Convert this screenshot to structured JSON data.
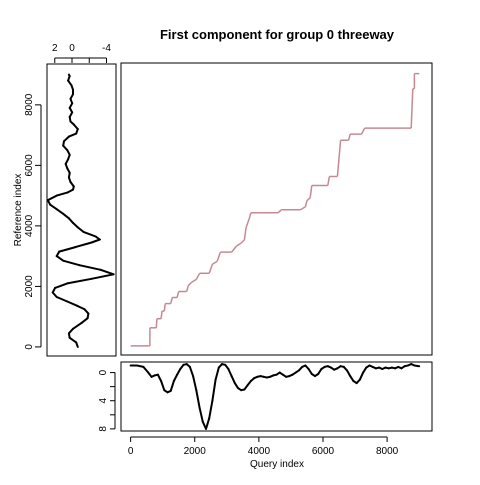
{
  "chart_data": {
    "type": "line",
    "title": "First component for group 0  threeway",
    "main": {
      "xlim": [
        -300,
        9400
      ],
      "ylim": [
        -300,
        9350
      ],
      "step_color": "#c48a94",
      "alignment": [
        [
          0,
          0
        ],
        [
          600,
          0
        ],
        [
          600,
          600
        ],
        [
          800,
          600
        ],
        [
          820,
          900
        ],
        [
          950,
          900
        ],
        [
          980,
          1150
        ],
        [
          1050,
          1150
        ],
        [
          1080,
          1400
        ],
        [
          1250,
          1400
        ],
        [
          1300,
          1600
        ],
        [
          1450,
          1600
        ],
        [
          1500,
          1800
        ],
        [
          1750,
          1800
        ],
        [
          1800,
          2000
        ],
        [
          1900,
          2100
        ],
        [
          2050,
          2200
        ],
        [
          2150,
          2400
        ],
        [
          2450,
          2400
        ],
        [
          2550,
          2700
        ],
        [
          2700,
          2800
        ],
        [
          2800,
          3100
        ],
        [
          3150,
          3100
        ],
        [
          3300,
          3300
        ],
        [
          3450,
          3400
        ],
        [
          3550,
          3500
        ],
        [
          3600,
          3900
        ],
        [
          3700,
          4200
        ],
        [
          3750,
          4400
        ],
        [
          4600,
          4400
        ],
        [
          4700,
          4500
        ],
        [
          5300,
          4500
        ],
        [
          5450,
          4600
        ],
        [
          5500,
          4800
        ],
        [
          5600,
          4900
        ],
        [
          5650,
          5300
        ],
        [
          6150,
          5300
        ],
        [
          6200,
          5600
        ],
        [
          6450,
          5600
        ],
        [
          6550,
          6800
        ],
        [
          6800,
          6800
        ],
        [
          6850,
          7000
        ],
        [
          7200,
          7000
        ],
        [
          7300,
          7200
        ],
        [
          8750,
          7200
        ],
        [
          8800,
          8500
        ],
        [
          8850,
          8500
        ],
        [
          8850,
          9000
        ],
        [
          9000,
          9000
        ]
      ]
    },
    "top_panel": {
      "x_ticks": [
        2,
        0,
        -4
      ],
      "xlim": [
        2.9,
        -5.1
      ]
    },
    "left_panel": {
      "ylabel": "Reference index",
      "y_ticks": [
        0,
        2000,
        4000,
        6000,
        8000
      ],
      "xlim": [
        3.0,
        -5.5
      ],
      "ylim": [
        -300,
        9350
      ],
      "curve": [
        [
          0,
          -0.8
        ],
        [
          150,
          -0.6
        ],
        [
          300,
          0.2
        ],
        [
          450,
          0.3
        ],
        [
          600,
          -0.2
        ],
        [
          800,
          -1.3
        ],
        [
          950,
          -2.0
        ],
        [
          1100,
          -2.1
        ],
        [
          1250,
          -1.6
        ],
        [
          1350,
          -0.8
        ],
        [
          1500,
          0.5
        ],
        [
          1650,
          1.8
        ],
        [
          1800,
          2.3
        ],
        [
          1950,
          2.0
        ],
        [
          2100,
          0.5
        ],
        [
          2250,
          -2.5
        ],
        [
          2400,
          -5.2
        ],
        [
          2550,
          -3.6
        ],
        [
          2700,
          -1.0
        ],
        [
          2850,
          1.0
        ],
        [
          3000,
          1.8
        ],
        [
          3150,
          1.5
        ],
        [
          3300,
          -0.5
        ],
        [
          3450,
          -2.5
        ],
        [
          3550,
          -3.5
        ],
        [
          3650,
          -3.0
        ],
        [
          3800,
          -1.5
        ],
        [
          3950,
          -0.8
        ],
        [
          4100,
          -0.2
        ],
        [
          4250,
          0.3
        ],
        [
          4400,
          1.0
        ],
        [
          4550,
          1.8
        ],
        [
          4700,
          2.6
        ],
        [
          4850,
          2.9
        ],
        [
          5000,
          1.8
        ],
        [
          5100,
          0.5
        ],
        [
          5200,
          -0.2
        ],
        [
          5300,
          -0.3
        ],
        [
          5450,
          0.1
        ],
        [
          5600,
          0.3
        ],
        [
          5750,
          0.2
        ],
        [
          5900,
          0.5
        ],
        [
          6050,
          0.7
        ],
        [
          6200,
          0.4
        ],
        [
          6350,
          0.2
        ],
        [
          6500,
          0.5
        ],
        [
          6650,
          1.0
        ],
        [
          6800,
          0.9
        ],
        [
          6950,
          0.3
        ],
        [
          7050,
          -0.6
        ],
        [
          7200,
          -0.8
        ],
        [
          7350,
          -0.3
        ],
        [
          7450,
          0.1
        ],
        [
          7600,
          0.2
        ],
        [
          7750,
          -0.1
        ],
        [
          7900,
          0.2
        ],
        [
          8050,
          -0.1
        ],
        [
          8200,
          0.1
        ],
        [
          8350,
          -0.2
        ],
        [
          8500,
          -0.2
        ],
        [
          8650,
          0.0
        ],
        [
          8800,
          0.4
        ],
        [
          8950,
          0.2
        ],
        [
          9000,
          0.3
        ]
      ]
    },
    "bottom_panel": {
      "xlabel": "Query index",
      "x_ticks": [
        0,
        2000,
        4000,
        6000,
        8000
      ],
      "y_ticks": [
        0,
        -4,
        -8
      ],
      "y_tick_labels": [
        "0",
        "4",
        "8"
      ],
      "xlim": [
        -300,
        9400
      ],
      "ylim": [
        -8.3,
        1.5
      ],
      "curve": [
        [
          0,
          1.0
        ],
        [
          200,
          1.0
        ],
        [
          400,
          0.8
        ],
        [
          550,
          0.0
        ],
        [
          650,
          -0.6
        ],
        [
          750,
          -0.4
        ],
        [
          850,
          -0.3
        ],
        [
          950,
          -1.2
        ],
        [
          1050,
          -2.5
        ],
        [
          1150,
          -2.8
        ],
        [
          1250,
          -2.6
        ],
        [
          1350,
          -1.2
        ],
        [
          1450,
          -0.3
        ],
        [
          1550,
          0.5
        ],
        [
          1650,
          1.1
        ],
        [
          1750,
          1.2
        ],
        [
          1850,
          0.8
        ],
        [
          1950,
          -0.5
        ],
        [
          2050,
          -2.5
        ],
        [
          2150,
          -5.0
        ],
        [
          2250,
          -7.0
        ],
        [
          2350,
          -8.0
        ],
        [
          2450,
          -6.5
        ],
        [
          2550,
          -4.0
        ],
        [
          2650,
          -1.0
        ],
        [
          2750,
          0.7
        ],
        [
          2850,
          1.2
        ],
        [
          2950,
          1.1
        ],
        [
          3050,
          0.5
        ],
        [
          3150,
          -0.5
        ],
        [
          3250,
          -1.5
        ],
        [
          3350,
          -2.2
        ],
        [
          3450,
          -2.5
        ],
        [
          3550,
          -2.4
        ],
        [
          3650,
          -1.8
        ],
        [
          3750,
          -1.2
        ],
        [
          3850,
          -0.8
        ],
        [
          3950,
          -0.6
        ],
        [
          4050,
          -0.5
        ],
        [
          4150,
          -0.6
        ],
        [
          4250,
          -0.7
        ],
        [
          4350,
          -0.6
        ],
        [
          4450,
          -0.4
        ],
        [
          4550,
          -0.3
        ],
        [
          4650,
          0.0
        ],
        [
          4750,
          -0.3
        ],
        [
          4850,
          -0.6
        ],
        [
          4950,
          -0.5
        ],
        [
          5050,
          -0.3
        ],
        [
          5150,
          0.0
        ],
        [
          5250,
          0.3
        ],
        [
          5350,
          0.8
        ],
        [
          5450,
          1.0
        ],
        [
          5550,
          0.5
        ],
        [
          5650,
          -0.2
        ],
        [
          5750,
          -0.5
        ],
        [
          5850,
          -0.2
        ],
        [
          5950,
          0.5
        ],
        [
          6050,
          0.8
        ],
        [
          6150,
          0.9
        ],
        [
          6250,
          0.7
        ],
        [
          6350,
          0.4
        ],
        [
          6450,
          0.6
        ],
        [
          6550,
          0.9
        ],
        [
          6650,
          0.8
        ],
        [
          6750,
          0.3
        ],
        [
          6850,
          -0.5
        ],
        [
          6950,
          -1.2
        ],
        [
          7050,
          -1.5
        ],
        [
          7150,
          -1.0
        ],
        [
          7250,
          0.0
        ],
        [
          7350,
          0.7
        ],
        [
          7450,
          1.0
        ],
        [
          7550,
          0.8
        ],
        [
          7650,
          0.6
        ],
        [
          7750,
          0.7
        ],
        [
          7850,
          0.5
        ],
        [
          7950,
          0.7
        ],
        [
          8050,
          0.6
        ],
        [
          8150,
          0.7
        ],
        [
          8250,
          0.6
        ],
        [
          8350,
          0.8
        ],
        [
          8450,
          0.6
        ],
        [
          8550,
          0.9
        ],
        [
          8650,
          1.0
        ],
        [
          8750,
          1.2
        ],
        [
          8850,
          1.0
        ],
        [
          9000,
          0.9
        ]
      ]
    }
  }
}
